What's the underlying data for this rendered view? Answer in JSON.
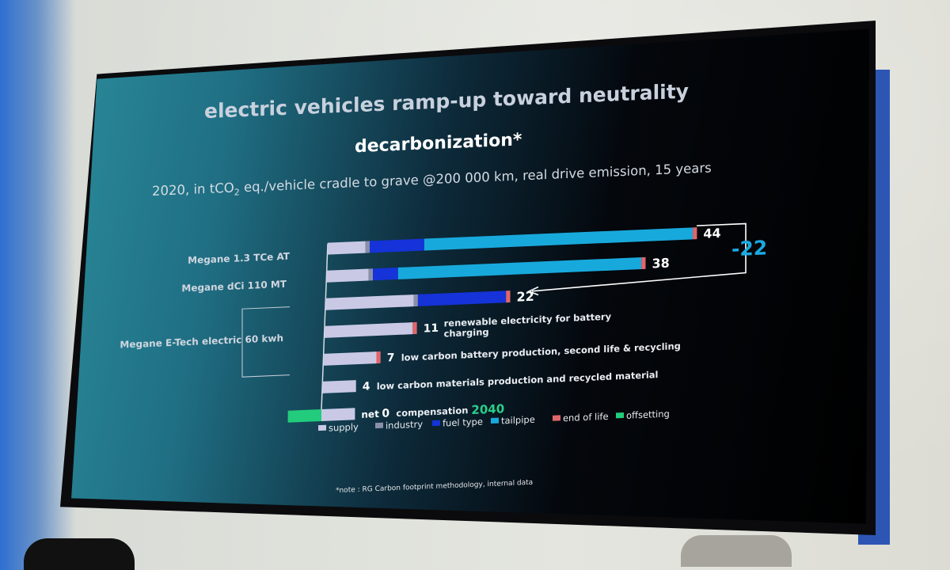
{
  "slide": {
    "title": "electric vehicles ramp-up toward neutrality",
    "chart_title": "decarbonization*",
    "subtitle_pre": "2020, in tCO",
    "subtitle_sub": "2",
    "subtitle_post": " eq./vehicle cradle to grave @200 000 km, real drive emission, 15 years",
    "note": "*note : RG Carbon footprint methodology, internal data"
  },
  "chart_data": {
    "type": "bar",
    "orientation": "horizontal",
    "stacked": true,
    "title": "decarbonization*",
    "subtitle": "2020, in tCO2 eq./vehicle cradle to grave @200 000 km, real drive emission, 15 years",
    "unit": "tCO2 eq./vehicle",
    "xlim": [
      -2,
      44
    ],
    "category_labels": [
      "Megane 1.3 TCe AT",
      "Megane dCi 110 MT",
      "Megane E-Tech electric 60 kwh"
    ],
    "rows": [
      {
        "total_label": "44",
        "annotation": ""
      },
      {
        "total_label": "38",
        "annotation": ""
      },
      {
        "total_label": "22",
        "annotation": ""
      },
      {
        "total_label": "11",
        "annotation": "renewable electricity for battery charging"
      },
      {
        "total_label": "7",
        "annotation": "low carbon battery production, second life & recycling"
      },
      {
        "total_label": "4",
        "annotation": "low carbon materials production and recycled material"
      },
      {
        "total_label": "0",
        "prefix": "net",
        "annotation": "compensation",
        "highlight": "2040"
      }
    ],
    "series": [
      {
        "name": "supply",
        "color": "#c9c9e6",
        "values": [
          4.5,
          5.0,
          10.5,
          10.5,
          6.3,
          4.0,
          4.0
        ]
      },
      {
        "name": "industry",
        "color": "#8a8fa8",
        "values": [
          0.5,
          0.5,
          0.5,
          0.0,
          0.0,
          0.0,
          0.0
        ]
      },
      {
        "name": "fuel type",
        "color": "#1533d8",
        "values": [
          6.5,
          3.0,
          10.5,
          0.0,
          0.0,
          0.0,
          0.0
        ]
      },
      {
        "name": "tailpipe",
        "color": "#18a9dc",
        "values": [
          32.0,
          29.0,
          0.0,
          0.0,
          0.0,
          0.0,
          0.0
        ]
      },
      {
        "name": "end of life",
        "color": "#e0666a",
        "values": [
          0.5,
          0.5,
          0.5,
          0.5,
          0.5,
          0.0,
          0.0
        ]
      },
      {
        "name": "offsetting",
        "color": "#22cc7c",
        "values": [
          0,
          0,
          0,
          0,
          0,
          0,
          -4.0
        ]
      }
    ],
    "bracket": {
      "label": "-22",
      "from_row": 0,
      "to_row": 2
    },
    "legend_position": "bottom"
  }
}
